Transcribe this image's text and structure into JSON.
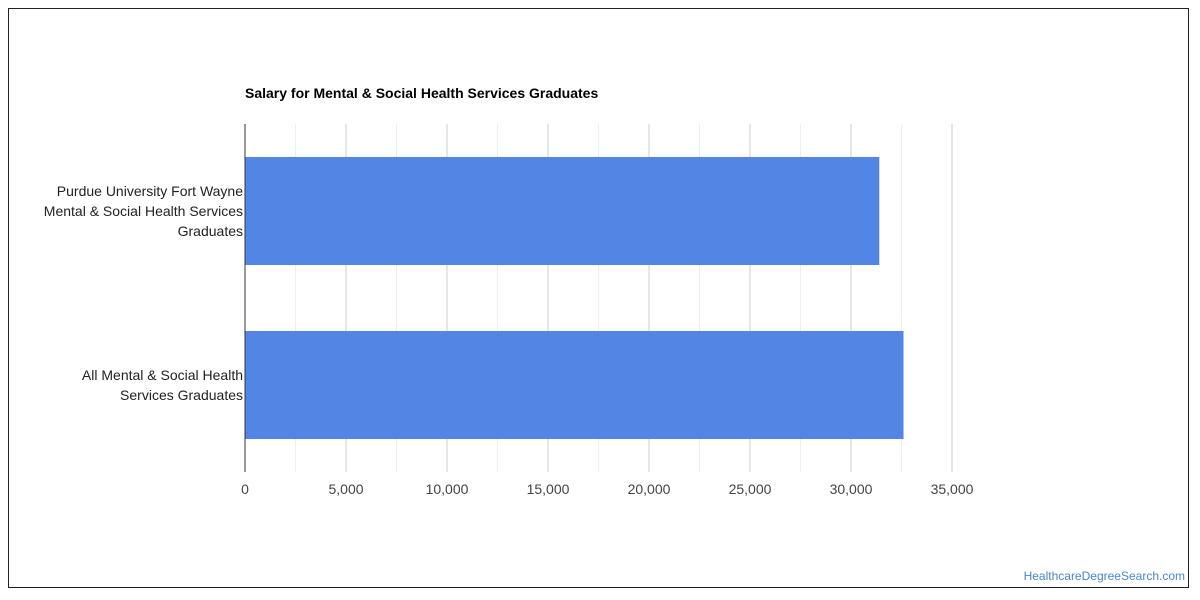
{
  "chart_data": {
    "type": "bar",
    "orientation": "horizontal",
    "title": "Salary for Mental & Social Health Services Graduates",
    "categories": [
      "Purdue University Fort Wayne Mental & Social Health Services Graduates",
      "All Mental & Social Health Services Graduates"
    ],
    "category_lines": [
      [
        "Purdue University Fort Wayne",
        "Mental & Social Health Services",
        "Graduates"
      ],
      [
        "All Mental & Social Health",
        "Services Graduates"
      ]
    ],
    "values": [
      31400,
      32600
    ],
    "xlim": [
      0,
      35000
    ],
    "x_ticks": [
      0,
      5000,
      10000,
      15000,
      20000,
      25000,
      30000,
      35000
    ],
    "x_tick_labels": [
      "0",
      "5,000",
      "10,000",
      "15,000",
      "20,000",
      "25,000",
      "30,000",
      "35,000"
    ],
    "grid": true,
    "bar_color": "#5385E4"
  },
  "watermark": {
    "text": "HealthcareDegreeSearch.com",
    "color": "#4A86C8"
  }
}
